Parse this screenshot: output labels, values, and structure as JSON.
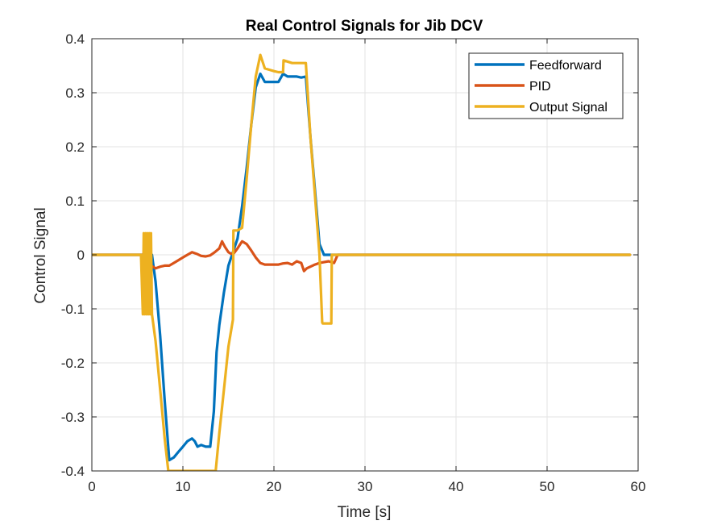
{
  "chart_data": {
    "type": "line",
    "title": "Real Control Signals for Jib DCV",
    "xlabel": "Time [s]",
    "ylabel": "Control Signal",
    "xlim": [
      0,
      60
    ],
    "ylim": [
      -0.4,
      0.4
    ],
    "xticks": [
      0,
      10,
      20,
      30,
      40,
      50,
      60
    ],
    "yticks": [
      -0.4,
      -0.3,
      -0.2,
      -0.1,
      0,
      0.1,
      0.2,
      0.3,
      0.4
    ],
    "xtick_labels": [
      "0",
      "10",
      "20",
      "30",
      "40",
      "50",
      "60"
    ],
    "ytick_labels": [
      "-0.4",
      "-0.3",
      "-0.2",
      "-0.1",
      "0",
      "0.1",
      "0.2",
      "0.3",
      "0.4"
    ],
    "grid": true,
    "legend_position": "top-right",
    "series": [
      {
        "name": "Feedforward",
        "color": "#0072BD",
        "x": [
          0,
          6.6,
          7.0,
          7.5,
          8.0,
          8.5,
          9.0,
          9.5,
          10.0,
          10.5,
          11.0,
          11.3,
          11.6,
          12.0,
          12.5,
          13.0,
          13.4,
          13.7,
          14.0,
          14.5,
          15.0,
          15.5,
          16.0,
          16.5,
          17.0,
          17.5,
          18.0,
          18.5,
          19.0,
          19.5,
          20.0,
          20.5,
          21.0,
          21.5,
          22.0,
          22.5,
          23.0,
          23.5,
          24.0,
          24.5,
          25.0,
          25.5,
          26.0,
          59.1
        ],
        "y": [
          0,
          0,
          -0.05,
          -0.15,
          -0.27,
          -0.38,
          -0.375,
          -0.365,
          -0.355,
          -0.345,
          -0.34,
          -0.345,
          -0.355,
          -0.352,
          -0.355,
          -0.355,
          -0.29,
          -0.18,
          -0.13,
          -0.07,
          -0.02,
          0.005,
          0.03,
          0.09,
          0.16,
          0.24,
          0.31,
          0.335,
          0.32,
          0.32,
          0.32,
          0.32,
          0.335,
          0.33,
          0.33,
          0.33,
          0.328,
          0.33,
          0.22,
          0.12,
          0.02,
          0,
          0,
          0
        ]
      },
      {
        "name": "PID",
        "color": "#D95319",
        "x": [
          0,
          5.6,
          6.5,
          7.0,
          7.5,
          8.0,
          8.5,
          9.0,
          9.5,
          10.0,
          10.5,
          11.0,
          11.5,
          12.0,
          12.5,
          13.0,
          13.5,
          14.0,
          14.3,
          14.6,
          15.0,
          15.3,
          15.6,
          16.0,
          16.5,
          17.0,
          17.5,
          18.0,
          18.5,
          19.0,
          19.5,
          20.0,
          20.5,
          21.0,
          21.5,
          22.0,
          22.5,
          23.0,
          23.3,
          23.6,
          24.0,
          24.5,
          25.0,
          26.0,
          26.6,
          27.0,
          59.1
        ],
        "y": [
          0,
          0,
          -0.02,
          -0.025,
          -0.022,
          -0.02,
          -0.02,
          -0.015,
          -0.01,
          -0.005,
          0.0,
          0.005,
          0.002,
          -0.002,
          -0.003,
          -0.001,
          0.005,
          0.012,
          0.025,
          0.015,
          0.005,
          0.002,
          0.003,
          0.012,
          0.025,
          0.02,
          0.008,
          -0.005,
          -0.015,
          -0.018,
          -0.018,
          -0.018,
          -0.018,
          -0.016,
          -0.015,
          -0.018,
          -0.012,
          -0.015,
          -0.03,
          -0.025,
          -0.022,
          -0.018,
          -0.015,
          -0.012,
          -0.015,
          0,
          0
        ]
      },
      {
        "name": "Output Signal",
        "color": "#EDB120",
        "x": [
          0,
          5.4,
          5.6,
          5.7,
          5.8,
          5.9,
          6.0,
          6.1,
          6.2,
          6.3,
          6.4,
          6.5,
          6.6,
          7.0,
          7.5,
          8.0,
          8.4,
          13.6,
          14.0,
          14.5,
          15.0,
          15.5,
          15.55,
          16.0,
          16.5,
          17.0,
          17.5,
          18.0,
          18.5,
          19.0,
          20.0,
          20.5,
          21.0,
          21.05,
          22.0,
          23.0,
          23.5,
          24.0,
          24.5,
          25.0,
          25.3,
          25.35,
          26.3,
          26.35,
          59.1
        ],
        "y": [
          0,
          0,
          -0.11,
          0.04,
          -0.11,
          0.04,
          -0.11,
          0.04,
          -0.11,
          0.04,
          -0.11,
          0.04,
          -0.11,
          -0.16,
          -0.25,
          -0.34,
          -0.4,
          -0.4,
          -0.33,
          -0.25,
          -0.17,
          -0.12,
          0.045,
          0.045,
          0.05,
          0.14,
          0.24,
          0.33,
          0.37,
          0.345,
          0.34,
          0.338,
          0.338,
          0.36,
          0.355,
          0.355,
          0.355,
          0.22,
          0.11,
          0.0,
          -0.125,
          -0.127,
          -0.127,
          0,
          0
        ]
      }
    ]
  }
}
